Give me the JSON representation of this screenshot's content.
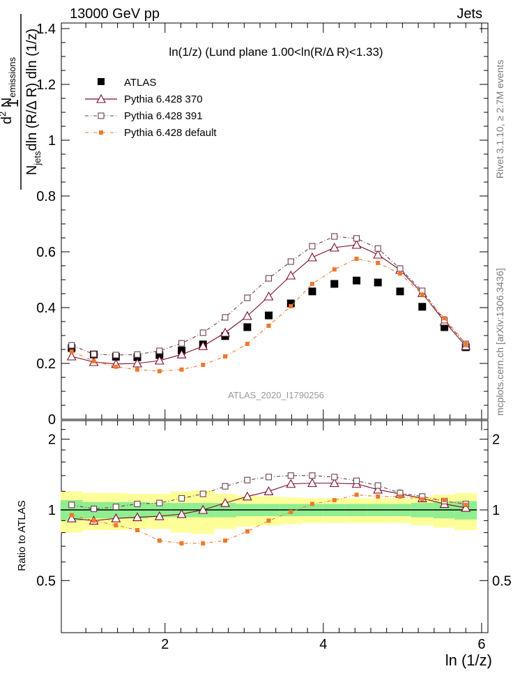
{
  "header": {
    "left": "13000 GeV pp",
    "right": "Jets"
  },
  "plot_title": "ln(1/z) (Lund plane 1.00<ln(R/Δ R)<1.33)",
  "watermark": "ATLAS_2020_I1790256",
  "side_text": {
    "rivet": "Rivet 3.1.10, ≥ 2.7M events",
    "mcplots": "mcplots.cern.ch [arXiv:1306.3436]"
  },
  "colors": {
    "atlas": "#000000",
    "pythia370": "#7a0a25",
    "pythia391": "#6a3e4c",
    "pythia_default": "#f0782a",
    "band_inner": "#90ee90",
    "band_outer": "#ffff99"
  },
  "chart_data": [
    {
      "type": "line",
      "title": "ln(1/z) (Lund plane 1.00<ln(R/Δ R)<1.33)",
      "ylabel_main": "d",
      "ylabel_sup": "2",
      "ylabel_sub": "emissions",
      "ylabel_den1": "N",
      "ylabel_den_sub": "jets",
      "ylabel_den2": "dln (R/Δ R) dln (1/z)",
      "ylabel_num_n": "N",
      "ylabel_one": "1",
      "xlim": [
        0.69,
        6.08
      ],
      "ylim": [
        0,
        1.42
      ],
      "yticks": [
        0,
        0.2,
        0.4,
        0.6,
        0.8,
        1,
        1.2,
        1.4
      ],
      "ytick_labels": [
        "0",
        "0.2",
        "0.4",
        "0.6",
        "0.8",
        "1",
        "1.2",
        "1.4"
      ],
      "x": [
        0.82,
        1.1,
        1.38,
        1.65,
        1.93,
        2.21,
        2.48,
        2.76,
        3.04,
        3.31,
        3.59,
        3.86,
        4.14,
        4.42,
        4.69,
        4.97,
        5.25,
        5.53,
        5.8
      ],
      "series": [
        {
          "name": "ATLAS",
          "marker": "filled-square",
          "values": [
            0.255,
            0.232,
            0.224,
            0.222,
            0.23,
            0.246,
            0.268,
            0.298,
            0.33,
            0.372,
            0.415,
            0.458,
            0.485,
            0.497,
            0.49,
            0.458,
            0.403,
            0.33,
            0.258
          ]
        },
        {
          "name": "Pythia 6.428 370",
          "marker": "open-triangle",
          "values": [
            0.225,
            0.205,
            0.198,
            0.2,
            0.21,
            0.232,
            0.262,
            0.31,
            0.37,
            0.44,
            0.515,
            0.58,
            0.615,
            0.625,
            0.59,
            0.535,
            0.452,
            0.35,
            0.262
          ]
        },
        {
          "name": "Pythia 6.428 391",
          "marker": "open-square",
          "values": [
            0.265,
            0.233,
            0.23,
            0.232,
            0.245,
            0.272,
            0.31,
            0.365,
            0.435,
            0.505,
            0.565,
            0.62,
            0.655,
            0.648,
            0.612,
            0.54,
            0.46,
            0.355,
            0.27
          ]
        },
        {
          "name": "Pythia 6.428 default",
          "marker": "filled-small-square",
          "values": [
            0.243,
            0.208,
            0.188,
            0.178,
            0.172,
            0.178,
            0.195,
            0.225,
            0.27,
            0.335,
            0.405,
            0.485,
            0.537,
            0.575,
            0.56,
            0.522,
            0.447,
            0.362,
            0.27
          ]
        }
      ]
    },
    {
      "type": "line",
      "ylabel": "Ratio to ATLAS",
      "xlabel": "ln (1/z)",
      "xticks": [
        2,
        4,
        6
      ],
      "xtick_labels": [
        "2",
        "4",
        "6"
      ],
      "ylim": [
        0.3,
        2.4
      ],
      "yticks": [
        0.5,
        1,
        2
      ],
      "ytick_labels": [
        "0.5",
        "1",
        "2"
      ],
      "series": [
        {
          "name": "Pythia 6.428 370",
          "values": [
            0.92,
            0.9,
            0.92,
            0.93,
            0.94,
            0.96,
            1.0,
            1.07,
            1.14,
            1.2,
            1.29,
            1.3,
            1.3,
            1.29,
            1.22,
            1.17,
            1.12,
            1.06,
            1.02
          ]
        },
        {
          "name": "Pythia 6.428 391",
          "values": [
            1.05,
            1.01,
            1.03,
            1.06,
            1.07,
            1.12,
            1.17,
            1.26,
            1.34,
            1.38,
            1.4,
            1.4,
            1.38,
            1.33,
            1.27,
            1.18,
            1.14,
            1.09,
            1.06
          ]
        },
        {
          "name": "Pythia 6.428 default",
          "values": [
            0.95,
            0.9,
            0.86,
            0.82,
            0.74,
            0.72,
            0.72,
            0.74,
            0.81,
            0.9,
            0.98,
            1.06,
            1.1,
            1.16,
            1.14,
            1.14,
            1.11,
            1.1,
            1.05
          ]
        }
      ],
      "band_inner": [
        0.1,
        0.08,
        0.08,
        0.08,
        0.07,
        0.07,
        0.07,
        0.07,
        0.06,
        0.06,
        0.06,
        0.06,
        0.06,
        0.06,
        0.06,
        0.06,
        0.07,
        0.08,
        0.09
      ],
      "band_outer": [
        0.2,
        0.18,
        0.18,
        0.17,
        0.17,
        0.2,
        0.21,
        0.17,
        0.15,
        0.14,
        0.13,
        0.12,
        0.12,
        0.12,
        0.12,
        0.12,
        0.14,
        0.16,
        0.18
      ]
    }
  ]
}
